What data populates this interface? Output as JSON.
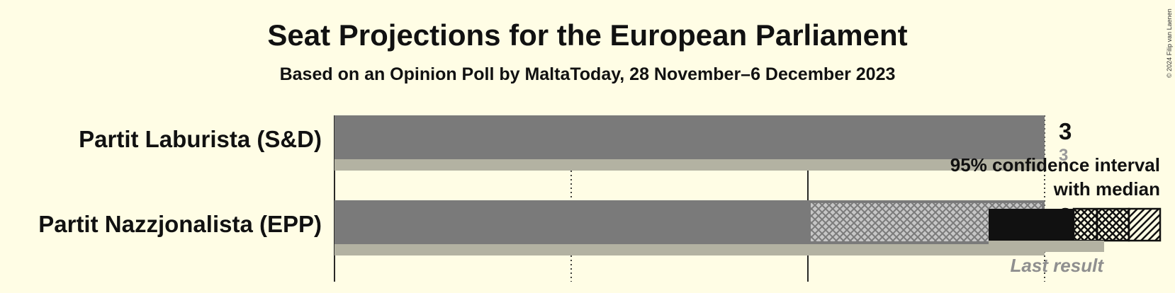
{
  "title": "Seat Projections for the European Parliament",
  "subtitle": "Based on an Opinion Poll by MaltaToday, 28 November–6 December 2023",
  "copyright": "© 2024 Filip van Laenen",
  "legend": {
    "ci_line1": "95% confidence interval",
    "ci_line2": "with median",
    "last_result": "Last result"
  },
  "colors": {
    "background": "#FFFDE5",
    "bar": "#7A7A7A",
    "last_result": "#B3B2A2",
    "ink": "#111111"
  },
  "chart_data": {
    "type": "bar",
    "orientation": "horizontal",
    "xlim": [
      0,
      3
    ],
    "gridlines": [
      0,
      1,
      2,
      3
    ],
    "parties": [
      {
        "name": "Partit Laburista (S&D)",
        "ci_low": 3,
        "ci_high": 3,
        "median": 3,
        "median_label": "3",
        "last_result": 3,
        "last_label": "3"
      },
      {
        "name": "Partit Nazzjonalista (EPP)",
        "ci_low": 2,
        "ci_high": 3,
        "median": 3,
        "median_label": "3",
        "last_result": 3,
        "last_label": "3"
      }
    ]
  }
}
